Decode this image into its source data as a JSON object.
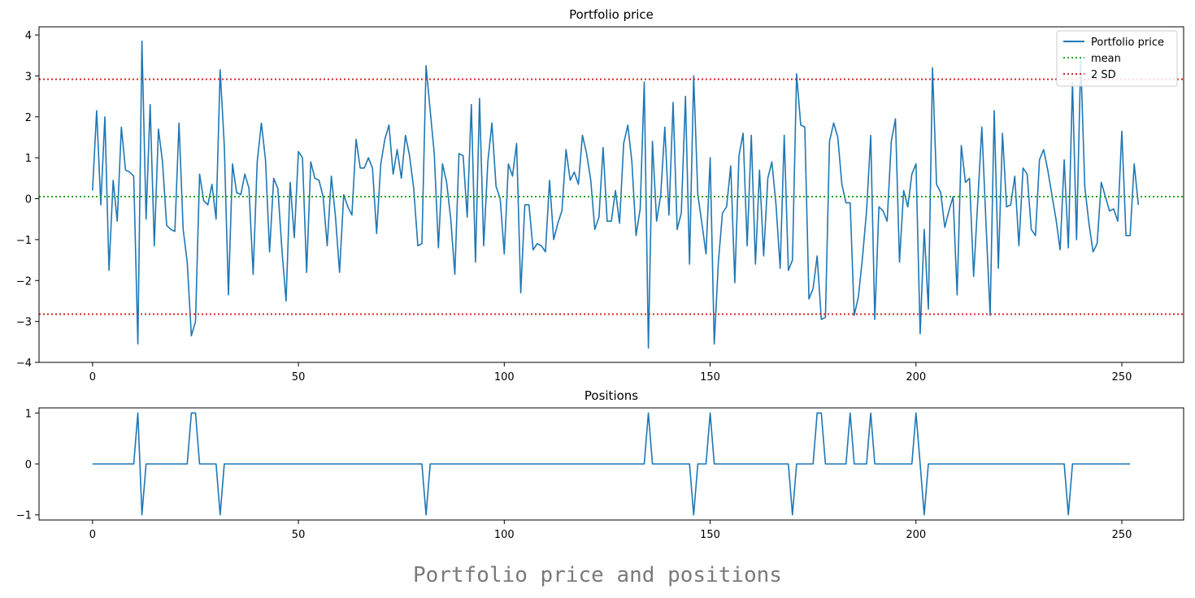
{
  "caption": "Portfolio price and positions",
  "chart_data": [
    {
      "type": "line",
      "title": "Portfolio price",
      "xlabel": "",
      "ylabel": "",
      "xlim": [
        -13,
        265
      ],
      "ylim": [
        -4,
        4.2
      ],
      "xticks": [
        0,
        50,
        100,
        150,
        200,
        250
      ],
      "yticks": [
        -4,
        -3,
        -2,
        -1,
        0,
        1,
        2,
        3,
        4
      ],
      "legend_position": "top-right",
      "series": [
        {
          "name": "Portfolio price",
          "style": "solid",
          "color": "#1f77b4",
          "x_start": 0,
          "values": [
            0.2,
            2.15,
            -0.15,
            2.0,
            -1.75,
            0.45,
            -0.55,
            1.75,
            0.7,
            0.65,
            0.55,
            -3.55,
            3.85,
            -0.5,
            2.3,
            -1.15,
            1.7,
            0.9,
            -0.65,
            -0.75,
            -0.8,
            1.85,
            -0.75,
            -1.55,
            -3.35,
            -3.0,
            0.6,
            -0.05,
            -0.15,
            0.35,
            -0.5,
            3.15,
            1.3,
            -2.35,
            0.85,
            0.15,
            0.1,
            0.6,
            0.25,
            -1.85,
            0.9,
            1.85,
            0.95,
            -1.3,
            0.5,
            0.25,
            -1.25,
            -2.5,
            0.4,
            -0.95,
            1.15,
            1.0,
            -1.8,
            0.9,
            0.5,
            0.45,
            0.05,
            -1.15,
            0.55,
            -0.45,
            -1.8,
            0.1,
            -0.2,
            -0.4,
            1.45,
            0.75,
            0.75,
            1.0,
            0.75,
            -0.85,
            0.85,
            1.45,
            1.8,
            0.6,
            1.2,
            0.5,
            1.55,
            1.05,
            0.25,
            -1.15,
            -1.1,
            3.25,
            2.15,
            1.1,
            -1.2,
            0.85,
            0.4,
            -0.5,
            -1.85,
            1.1,
            1.05,
            -0.45,
            2.3,
            -1.55,
            2.45,
            -1.15,
            0.9,
            1.85,
            0.3,
            0.0,
            -1.35,
            0.85,
            0.55,
            1.35,
            -2.3,
            -0.15,
            -0.15,
            -1.25,
            -1.1,
            -1.15,
            -1.3,
            0.45,
            -1.0,
            -0.6,
            -0.3,
            1.2,
            0.45,
            0.65,
            0.35,
            1.55,
            1.1,
            0.45,
            -0.75,
            -0.45,
            1.25,
            -0.55,
            -0.55,
            0.2,
            -0.6,
            1.35,
            1.8,
            0.9,
            -0.9,
            -0.25,
            2.85,
            -3.65,
            1.4,
            -0.55,
            0.1,
            1.75,
            -0.4,
            2.35,
            -0.75,
            -0.35,
            2.5,
            -1.6,
            3.0,
            0.1,
            -0.6,
            -1.35,
            1.0,
            -3.55,
            -1.55,
            -0.35,
            -0.2,
            0.8,
            -2.05,
            1.05,
            1.6,
            -1.15,
            1.55,
            -1.6,
            0.7,
            -1.4,
            0.5,
            0.9,
            -0.15,
            -1.7,
            1.55,
            -1.75,
            -1.5,
            3.05,
            1.8,
            1.75,
            -2.45,
            -2.2,
            -1.4,
            -2.95,
            -2.9,
            1.4,
            1.85,
            1.5,
            0.35,
            -0.1,
            -0.1,
            -2.85,
            -2.4,
            -1.45,
            -0.3,
            1.55,
            -2.95,
            -0.2,
            -0.3,
            -0.55,
            1.4,
            1.95,
            -1.55,
            0.2,
            -0.2,
            0.6,
            0.85,
            -3.3,
            -0.75,
            -2.7,
            3.2,
            0.35,
            0.15,
            -0.7,
            -0.3,
            0.05,
            -2.35,
            1.3,
            0.4,
            0.5,
            -1.9,
            -0.05,
            1.75,
            -0.6,
            -2.85,
            2.15,
            -1.7,
            1.6,
            -0.2,
            -0.15,
            0.55,
            -1.15,
            0.75,
            0.6,
            -0.75,
            -0.9,
            0.95,
            1.2,
            0.7,
            0.1,
            -0.5,
            -1.25,
            0.95,
            -1.2,
            2.85,
            -1.0,
            3.4,
            0.3,
            -0.6,
            -1.3,
            -1.1,
            0.4,
            0.05,
            -0.3,
            -0.25,
            -0.55,
            1.65,
            -0.9,
            -0.9,
            0.85,
            -0.15
          ]
        },
        {
          "name": "mean",
          "style": "dotted",
          "color": "#2ca02c",
          "hline": 0.05
        },
        {
          "name": "2 SD",
          "style": "dotted",
          "color": "#d62728",
          "hlines": [
            2.92,
            -2.82
          ]
        }
      ]
    },
    {
      "type": "line",
      "title": "Positions",
      "xlabel": "",
      "ylabel": "",
      "xlim": [
        -13,
        265
      ],
      "ylim": [
        -1.1,
        1.1
      ],
      "xticks": [
        0,
        50,
        100,
        150,
        200,
        250
      ],
      "yticks": [
        -1,
        0,
        1
      ],
      "series": [
        {
          "style": "solid",
          "color": "#1f77b4",
          "x": [
            0,
            10,
            11,
            12,
            13,
            22,
            23,
            24,
            25,
            26,
            29,
            30,
            31,
            32,
            79,
            80,
            81,
            82,
            133,
            134,
            135,
            136,
            144,
            145,
            146,
            147,
            148,
            149,
            150,
            151,
            168,
            169,
            170,
            171,
            174,
            175,
            176,
            177,
            178,
            182,
            183,
            184,
            185,
            187,
            188,
            189,
            190,
            198,
            199,
            200,
            201,
            202,
            203,
            235,
            236,
            237,
            238,
            239,
            252
          ],
          "y": [
            0,
            0,
            1,
            -1,
            0,
            0,
            0,
            1,
            1,
            0,
            0,
            0,
            -1,
            0,
            0,
            0,
            -1,
            0,
            0,
            0,
            1,
            0,
            0,
            0,
            -1,
            0,
            0,
            0,
            1,
            0,
            0,
            0,
            -1,
            0,
            0,
            0,
            1,
            1,
            0,
            0,
            0,
            1,
            0,
            0,
            0,
            1,
            0,
            0,
            0,
            1,
            0,
            -1,
            0,
            0,
            0,
            -1,
            0,
            0,
            0
          ]
        }
      ]
    }
  ]
}
